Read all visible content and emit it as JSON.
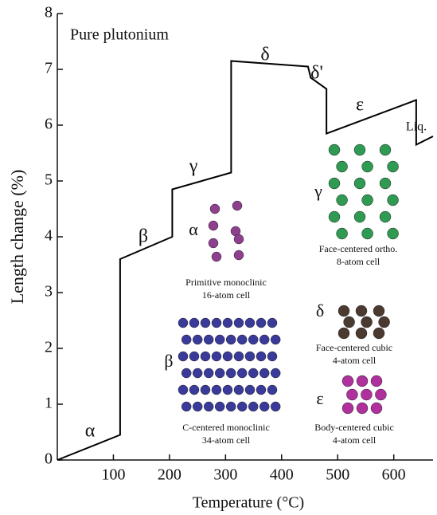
{
  "chart_data": {
    "type": "line",
    "x": [
      0,
      112,
      112,
      205,
      205,
      310,
      310,
      447,
      452,
      480,
      480,
      640,
      640,
      670
    ],
    "series": [
      {
        "color": "#000000",
        "values": [
          0,
          0.45,
          3.6,
          4.0,
          4.85,
          5.15,
          7.15,
          7.05,
          6.85,
          6.65,
          5.85,
          6.45,
          5.65,
          5.8
        ]
      }
    ],
    "xlim": [
      0,
      670
    ],
    "ylim": [
      0,
      8
    ],
    "xticks": [
      100,
      200,
      300,
      400,
      500,
      600
    ],
    "yticks": [
      0,
      1,
      2,
      3,
      4,
      5,
      6,
      7,
      8
    ],
    "xlabel": "Temperature (°C)",
    "ylabel": "Length change (%)",
    "annotations": [
      "Pure plutonium",
      "α",
      "β",
      "γ",
      "δ",
      "δ'",
      "ε",
      "Liq."
    ],
    "insets": [
      {
        "label": "α",
        "caption": [
          "Primitive monoclinic",
          "16-atom cell"
        ]
      },
      {
        "label": "β",
        "caption": [
          "C-centered monoclinic",
          "34-atom cell"
        ]
      },
      {
        "label": "γ",
        "caption": [
          "Face-centered ortho.",
          "8-atom cell"
        ]
      },
      {
        "label": "δ",
        "caption": [
          "Face-centered cubic",
          "4-atom cell"
        ]
      },
      {
        "label": "ε",
        "caption": [
          "Body-centered cubic",
          "4-atom cell"
        ]
      }
    ]
  }
}
